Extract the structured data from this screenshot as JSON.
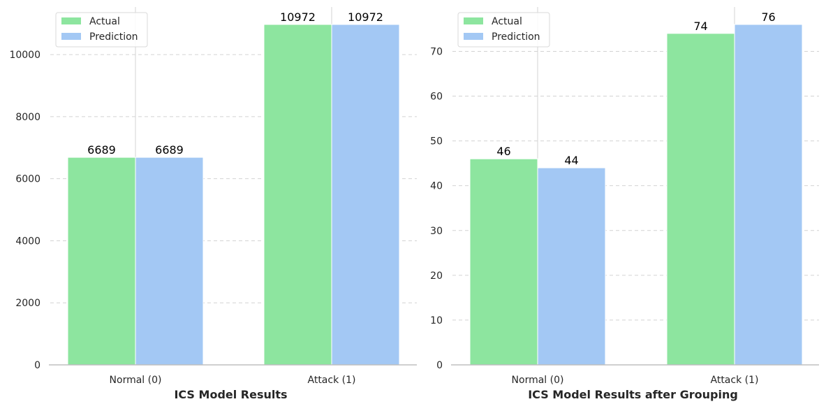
{
  "colors": {
    "actual": "#8de59f",
    "prediction": "#a3c8f4",
    "grid": "#d3d3d3",
    "axis": "#bfbfbf",
    "text": "#262626"
  },
  "chart_data": [
    {
      "type": "bar",
      "title": "",
      "xlabel": "ICS Model Results",
      "ylabel": "",
      "categories": [
        "Normal (0)",
        "Attack (1)"
      ],
      "series": [
        {
          "name": "Actual",
          "values": [
            6689,
            10972
          ]
        },
        {
          "name": "Prediction",
          "values": [
            6689,
            10972
          ]
        }
      ],
      "ylim": [
        0,
        11000
      ],
      "yticks": [
        0,
        2000,
        4000,
        6000,
        8000,
        10000
      ],
      "grid": "horizontal dashed",
      "legend": "top-left"
    },
    {
      "type": "bar",
      "title": "",
      "xlabel": "ICS Model Results after Grouping",
      "ylabel": "",
      "categories": [
        "Normal (0)",
        "Attack (1)"
      ],
      "series": [
        {
          "name": "Actual",
          "values": [
            46,
            74
          ]
        },
        {
          "name": "Prediction",
          "values": [
            44,
            76
          ]
        }
      ],
      "ylim": [
        0,
        76
      ],
      "yticks": [
        0,
        10,
        20,
        30,
        40,
        50,
        60,
        70
      ],
      "grid": "horizontal dashed",
      "legend": "top-left"
    }
  ]
}
